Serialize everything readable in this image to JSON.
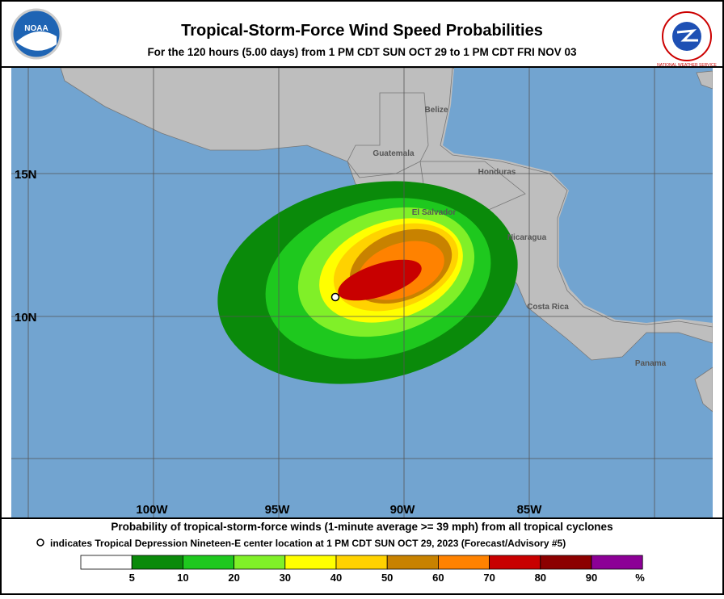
{
  "header": {
    "title": "Tropical-Storm-Force Wind Speed Probabilities",
    "subtitle": "For the 120 hours (5.00 days) from 1 PM CDT SUN OCT 29 to 1 PM CDT FRI NOV 03",
    "left_logo": "NOAA",
    "right_logo": "NATIONAL WEATHER SERVICE"
  },
  "map": {
    "countries": [
      "Belize",
      "Guatemala",
      "Honduras",
      "El Salvador",
      "Nicaragua",
      "Costa Rica",
      "Panama"
    ],
    "latitudes": [
      "15N",
      "10N"
    ],
    "longitudes": [
      "100W",
      "95W",
      "90W",
      "85W"
    ]
  },
  "caption": {
    "line1": "Probability of tropical-storm-force winds (1-minute average >= 39 mph) from all tropical cyclones",
    "line2": "indicates Tropical Depression Nineteen-E center location at 1 PM CDT SUN OCT 29, 2023 (Forecast/Advisory #5)"
  },
  "legend": {
    "labels": [
      "5",
      "10",
      "20",
      "30",
      "40",
      "50",
      "60",
      "70",
      "80",
      "90"
    ],
    "unit": "%",
    "colors": [
      "#ffffff",
      "#0a8a0a",
      "#1ec81e",
      "#80f028",
      "#ffff00",
      "#ffd200",
      "#c88200",
      "#ff8200",
      "#c80000",
      "#8c0000",
      "#8c0096"
    ]
  }
}
